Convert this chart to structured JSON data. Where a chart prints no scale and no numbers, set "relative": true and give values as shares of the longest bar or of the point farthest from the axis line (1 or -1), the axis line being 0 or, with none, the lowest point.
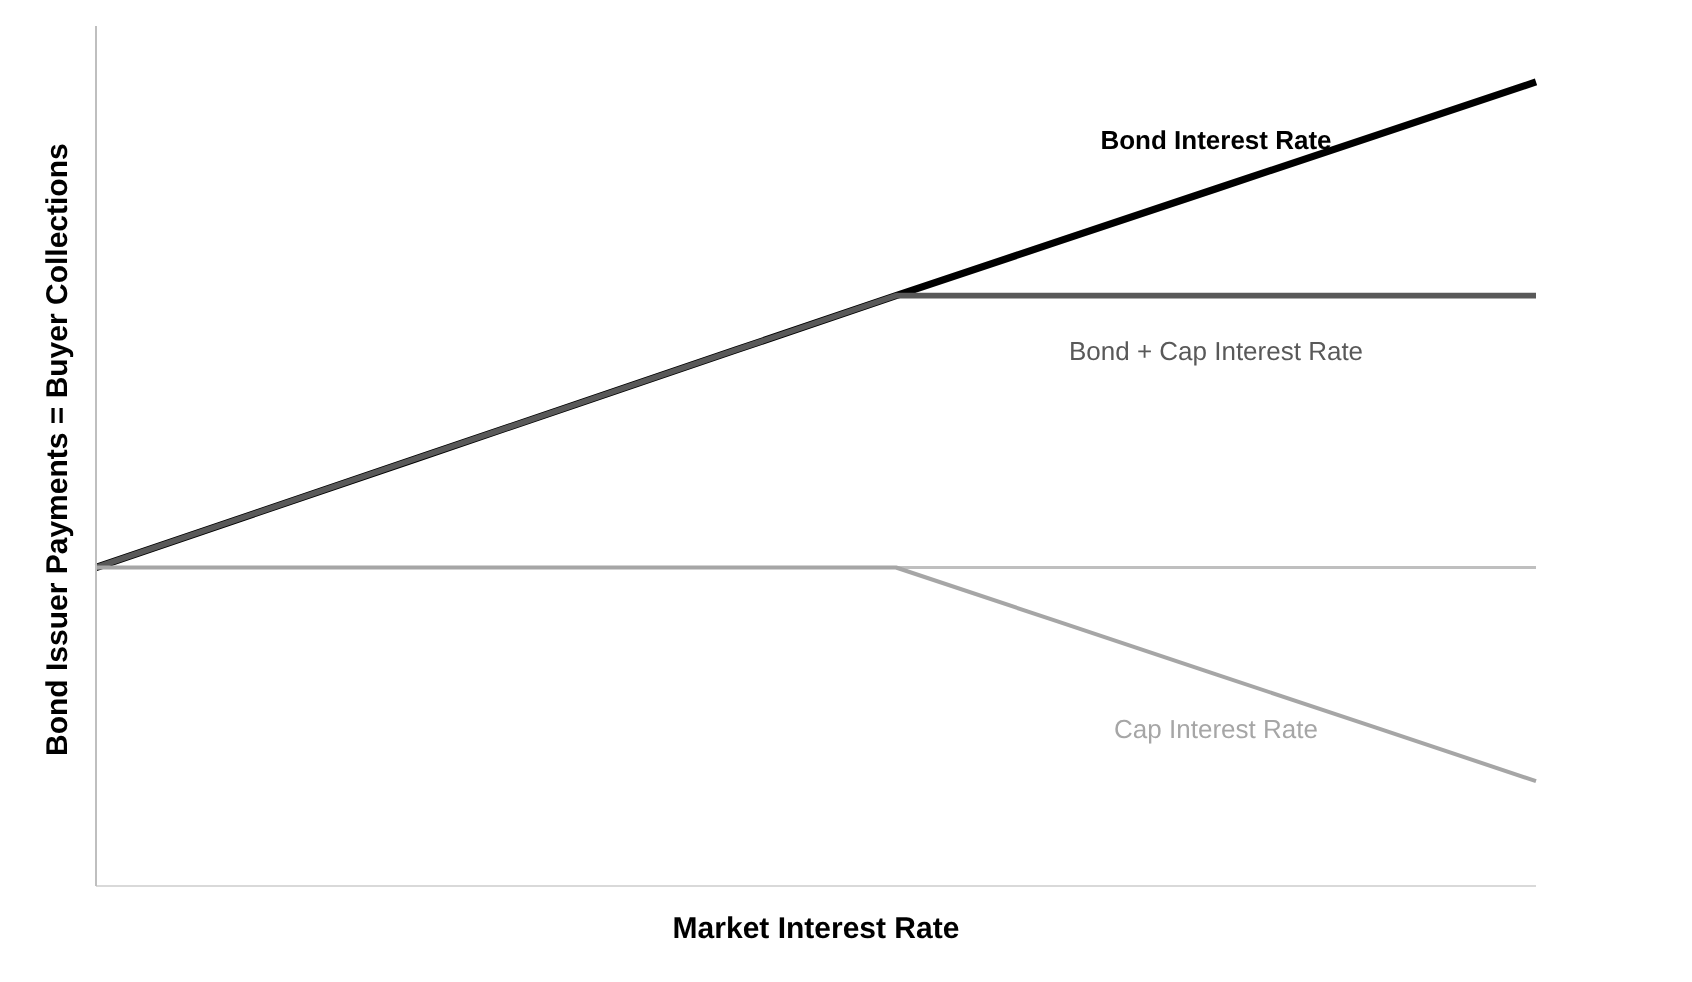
{
  "chart_data": {
    "type": "line",
    "relative": true,
    "xlabel": "Market Interest Rate",
    "ylabel": "Bond Issuer Payments = Buyer Collections",
    "categories": [
      null,
      null,
      null,
      null,
      null,
      null,
      null,
      null,
      null,
      null
    ],
    "marker": "none",
    "legend": false,
    "grid": false,
    "series": [
      {
        "name": "Bond Interest Rate",
        "color": "#000000",
        "values": [
          0,
          0.112,
          0.224,
          0.336,
          0.448,
          0.56,
          0.67,
          0.78,
          0.89,
          1
        ]
      },
      {
        "name": "Bond + Cap Interest Rate",
        "color": "#595959",
        "values": [
          0,
          0.112,
          0.224,
          0.336,
          0.448,
          0.56,
          0.56,
          0.56,
          0.56,
          0.56
        ]
      },
      {
        "name": "Cap Interest Rate",
        "color": "#a6a6a6",
        "values": [
          0,
          0,
          0,
          0,
          0,
          0,
          -0.11,
          -0.22,
          -0.33,
          -0.44
        ]
      }
    ]
  }
}
